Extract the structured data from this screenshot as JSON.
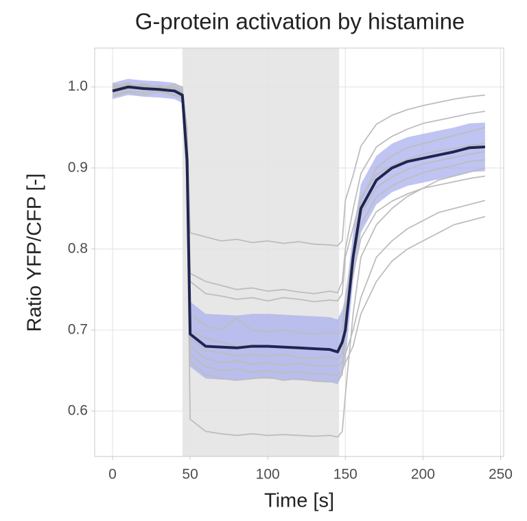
{
  "chart_data": {
    "type": "line",
    "title": "G-protein activation by histamine",
    "x_label": "Time [s]",
    "y_label": "Ratio YFP/CFP [-]",
    "xlim": [
      -11.5,
      252
    ],
    "ylim": [
      0.544,
      1.048
    ],
    "xticks": [
      0,
      50,
      100,
      150,
      200,
      250
    ],
    "yticks": [
      {
        "value": 0.6,
        "label": "0.6"
      },
      {
        "value": 0.7,
        "label": "0.7"
      },
      {
        "value": 0.8,
        "label": "0.8"
      },
      {
        "value": 0.9,
        "label": "0.9"
      },
      {
        "value": 1.0,
        "label": "1.0"
      }
    ],
    "grid": true,
    "shaded_region": [
      45,
      146
    ],
    "shaded_color": "#e3e3e3",
    "x": [
      0,
      10,
      20,
      30,
      40,
      45,
      48,
      50,
      60,
      70,
      80,
      90,
      100,
      110,
      120,
      130,
      140,
      145,
      148,
      150,
      155,
      160,
      170,
      180,
      190,
      200,
      210,
      220,
      230,
      240
    ],
    "band": {
      "color": "#aab0ee",
      "upper": [
        1.005,
        1.01,
        1.008,
        1.007,
        1.005,
        1.0,
        0.95,
        0.735,
        0.72,
        0.719,
        0.718,
        0.72,
        0.72,
        0.719,
        0.718,
        0.717,
        0.716,
        0.713,
        0.725,
        0.74,
        0.82,
        0.88,
        0.915,
        0.93,
        0.938,
        0.942,
        0.946,
        0.95,
        0.955,
        0.956
      ],
      "lower": [
        0.985,
        0.99,
        0.988,
        0.987,
        0.985,
        0.98,
        0.87,
        0.655,
        0.64,
        0.639,
        0.638,
        0.64,
        0.64,
        0.639,
        0.638,
        0.637,
        0.636,
        0.633,
        0.645,
        0.66,
        0.76,
        0.82,
        0.855,
        0.87,
        0.878,
        0.882,
        0.886,
        0.89,
        0.895,
        0.896
      ]
    },
    "series": [
      {
        "color": "#bdbdbd",
        "values": [
          1.0,
          1.005,
          0.998,
          1.002,
          0.996,
          0.995,
          0.95,
          0.82,
          0.815,
          0.81,
          0.812,
          0.808,
          0.81,
          0.807,
          0.809,
          0.806,
          0.805,
          0.804,
          0.81,
          0.86,
          0.891,
          0.927,
          0.954,
          0.965,
          0.972,
          0.977,
          0.981,
          0.985,
          0.988,
          0.99
        ]
      },
      {
        "color": "#bdbdbd",
        "values": [
          0.998,
          1.003,
          1.0,
          0.997,
          0.999,
          0.994,
          0.94,
          0.77,
          0.76,
          0.755,
          0.75,
          0.752,
          0.748,
          0.75,
          0.747,
          0.745,
          0.748,
          0.746,
          0.76,
          0.8,
          0.849,
          0.893,
          0.926,
          0.939,
          0.948,
          0.955,
          0.959,
          0.963,
          0.967,
          0.97
        ]
      },
      {
        "color": "#bdbdbd",
        "values": [
          0.99,
          0.995,
          0.993,
          0.996,
          0.99,
          0.988,
          0.93,
          0.76,
          0.745,
          0.742,
          0.738,
          0.74,
          0.736,
          0.74,
          0.738,
          0.735,
          0.737,
          0.736,
          0.745,
          0.79,
          0.826,
          0.864,
          0.892,
          0.903,
          0.911,
          0.917,
          0.921,
          0.924,
          0.928,
          0.93
        ]
      },
      {
        "color": "#bdbdbd",
        "values": [
          1.002,
          1.0,
          1.004,
          0.998,
          1.0,
          0.996,
          0.92,
          0.72,
          0.705,
          0.7,
          0.715,
          0.7,
          0.698,
          0.7,
          0.697,
          0.695,
          0.697,
          0.695,
          0.7,
          0.74,
          0.799,
          0.843,
          0.876,
          0.889,
          0.898,
          0.905,
          0.909,
          0.913,
          0.917,
          0.92
        ]
      },
      {
        "color": "#bdbdbd",
        "values": [
          0.995,
          1.002,
          0.997,
          1.0,
          0.994,
          0.99,
          0.91,
          0.7,
          0.69,
          0.685,
          0.68,
          0.682,
          0.68,
          0.678,
          0.68,
          0.677,
          0.676,
          0.675,
          0.68,
          0.72,
          0.784,
          0.83,
          0.864,
          0.878,
          0.887,
          0.894,
          0.899,
          0.903,
          0.908,
          0.91
        ]
      },
      {
        "color": "#bdbdbd",
        "values": [
          0.993,
          0.998,
          1.0,
          0.995,
          0.997,
          0.992,
          0.9,
          0.69,
          0.675,
          0.672,
          0.668,
          0.67,
          0.668,
          0.67,
          0.666,
          0.665,
          0.667,
          0.664,
          0.67,
          0.71,
          0.769,
          0.813,
          0.846,
          0.859,
          0.868,
          0.875,
          0.879,
          0.883,
          0.887,
          0.89
        ]
      },
      {
        "color": "#bdbdbd",
        "values": [
          1.004,
          0.999,
          1.002,
          1.0,
          0.998,
          0.997,
          0.92,
          0.68,
          0.665,
          0.66,
          0.662,
          0.658,
          0.66,
          0.657,
          0.659,
          0.656,
          0.655,
          0.656,
          0.66,
          0.67,
          0.7,
          0.74,
          0.79,
          0.81,
          0.825,
          0.835,
          0.845,
          0.85,
          0.855,
          0.86
        ]
      },
      {
        "color": "#bdbdbd",
        "values": [
          0.997,
          1.001,
          0.996,
          0.999,
          0.995,
          0.993,
          0.9,
          0.67,
          0.655,
          0.65,
          0.652,
          0.648,
          0.65,
          0.647,
          0.649,
          0.646,
          0.645,
          0.644,
          0.65,
          0.66,
          0.68,
          0.72,
          0.76,
          0.785,
          0.8,
          0.81,
          0.82,
          0.83,
          0.835,
          0.84
        ]
      },
      {
        "color": "#bdbdbd",
        "values": [
          1.0,
          0.997,
          1.001,
          0.998,
          1.003,
          1.0,
          0.91,
          0.66,
          0.645,
          0.64,
          0.638,
          0.64,
          0.642,
          0.638,
          0.64,
          0.637,
          0.636,
          0.638,
          0.645,
          0.7,
          0.8,
          0.86,
          0.9,
          0.915,
          0.925,
          0.93,
          0.935,
          0.94,
          0.945,
          0.95
        ]
      },
      {
        "color": "#bdbdbd",
        "values": [
          0.988,
          0.993,
          0.99,
          0.994,
          0.989,
          0.986,
          0.88,
          0.59,
          0.575,
          0.572,
          0.57,
          0.572,
          0.57,
          0.571,
          0.57,
          0.569,
          0.57,
          0.568,
          0.575,
          0.62,
          0.72,
          0.79,
          0.83,
          0.85,
          0.865,
          0.875,
          0.885,
          0.89,
          0.895,
          0.9
        ]
      },
      {
        "color": "#1f2550",
        "width": 4,
        "values": [
          0.995,
          1.0,
          0.998,
          0.997,
          0.995,
          0.99,
          0.91,
          0.695,
          0.68,
          0.679,
          0.678,
          0.68,
          0.68,
          0.679,
          0.678,
          0.677,
          0.676,
          0.673,
          0.685,
          0.7,
          0.79,
          0.85,
          0.885,
          0.9,
          0.908,
          0.912,
          0.916,
          0.92,
          0.925,
          0.926
        ]
      }
    ]
  }
}
